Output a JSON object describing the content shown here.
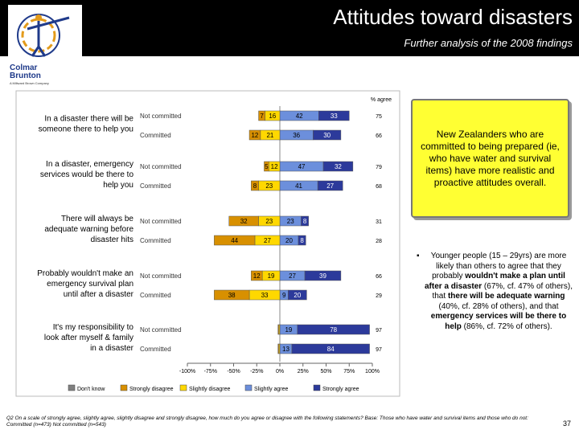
{
  "header": {
    "title": "Attitudes toward disasters",
    "subtitle": "Further analysis of the 2008 findings"
  },
  "logo": {
    "text_line1": "Colmar",
    "text_line2": "Brunton",
    "tagline": "A Millward Brown Company"
  },
  "chart_data": {
    "type": "bar",
    "orientation": "horizontal-diverging",
    "net_header": "% agree",
    "xaxis": {
      "min": -100,
      "max": 100,
      "ticks": [
        "-100%",
        "-75%",
        "-50%",
        "-25%",
        "0%",
        "25%",
        "50%",
        "75%",
        "100%"
      ]
    },
    "legend_position": "bottom",
    "legend": [
      {
        "name": "Don't know",
        "color": "#808080"
      },
      {
        "name": "Strongly disagree",
        "color": "#d89000"
      },
      {
        "name": "Slightly disagree",
        "color": "#ffd800"
      },
      {
        "name": "Slightly agree",
        "color": "#6c8fdc"
      },
      {
        "name": "Strongly agree",
        "color": "#2c3a9b"
      }
    ],
    "statements": [
      {
        "label": "In a disaster there will be someone there to help you",
        "groups": [
          {
            "name": "Not committed",
            "strongly_disagree": 7,
            "slightly_disagree": 16,
            "slightly_agree": 42,
            "strongly_agree": 33,
            "net": "75"
          },
          {
            "name": "Committed",
            "strongly_disagree": 12,
            "slightly_disagree": 21,
            "slightly_agree": 36,
            "strongly_agree": 30,
            "net": "66"
          }
        ]
      },
      {
        "label": "In a disaster, emergency services would be there to help you",
        "groups": [
          {
            "name": "Not committed",
            "strongly_disagree": 5,
            "slightly_disagree": 12,
            "slightly_agree": 47,
            "strongly_agree": 32,
            "net": "79"
          },
          {
            "name": "Committed",
            "strongly_disagree": 8,
            "slightly_disagree": 23,
            "slightly_agree": 41,
            "strongly_agree": 27,
            "net": "68"
          }
        ]
      },
      {
        "label": "There will always be adequate warning before disaster hits",
        "groups": [
          {
            "name": "Not committed",
            "strongly_disagree": 32,
            "slightly_disagree": 23,
            "slightly_agree": 23,
            "strongly_agree": 8,
            "net": "31"
          },
          {
            "name": "Committed",
            "strongly_disagree": 44,
            "slightly_disagree": 27,
            "slightly_agree": 20,
            "strongly_agree": 8,
            "net": "28"
          }
        ]
      },
      {
        "label": "Probably wouldn't make an emergency survival plan until after a disaster",
        "groups": [
          {
            "name": "Not committed",
            "strongly_disagree": 12,
            "slightly_disagree": 19,
            "slightly_agree": 27,
            "strongly_agree": 39,
            "net": "66"
          },
          {
            "name": "Committed",
            "strongly_disagree": 38,
            "slightly_disagree": 33,
            "slightly_agree": 9,
            "strongly_agree": 20,
            "net": "29"
          }
        ]
      },
      {
        "label": "It's my responsibility to look after myself & family in a disaster",
        "groups": [
          {
            "name": "Not committed",
            "strongly_disagree": 1,
            "slightly_disagree": 1,
            "slightly_agree": 19,
            "strongly_agree": 78,
            "net": "97"
          },
          {
            "name": "Committed",
            "strongly_disagree": 1,
            "slightly_disagree": 1,
            "slightly_agree": 13,
            "strongly_agree": 84,
            "net": "97"
          }
        ]
      }
    ]
  },
  "callout": {
    "text": "New Zealanders who are committed to being prepared (ie, who have water and survival items) have more realistic and proactive attitudes overall."
  },
  "bullet": {
    "t1": "Younger people (15 – 29yrs) are more likely than others to agree that they probably ",
    "b1": "wouldn't make a plan until after a disaster",
    "t2": " (67%, cf. 47% of others), that ",
    "b2": "there will be adequate warning",
    "t3": " (40%, cf. 28% of others), and that ",
    "b3": "emergency services will be there to help",
    "t4": " (86%, cf. 72% of others)."
  },
  "footnote": "Q2 On a scale of strongly agree, slightly agree, slightly disagree and strongly disagree, how much do you agree or disagree with the following statements? Base: Those who have water and survival items and those who do not: Committed (n=473) Not committed (n=543)",
  "page_number": "37"
}
